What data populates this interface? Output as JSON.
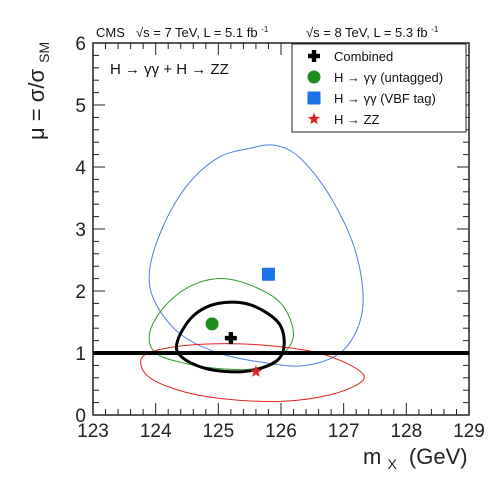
{
  "chart_data": {
    "type": "scatter",
    "header": {
      "experiment": "CMS",
      "run1_energy_prefix": "√s = 7 TeV, L = 5.1 fb",
      "run1_lumi_sup": "-1",
      "run2_energy_prefix": "√s = 8 TeV, L = 5.3 fb",
      "run2_lumi_sup": "-1"
    },
    "title": "H → γγ + H → ZZ",
    "xlabel_main": "m",
    "xlabel_sub": "X",
    "xlabel_unit": "(GeV)",
    "ylabel_main": "μ = σ/σ",
    "ylabel_sub": "SM",
    "xlim": [
      123,
      129
    ],
    "ylim": [
      0,
      6
    ],
    "xticks": [
      "123",
      "124",
      "125",
      "126",
      "127",
      "128",
      "129"
    ],
    "yticks": [
      "0",
      "1",
      "2",
      "3",
      "4",
      "5",
      "6"
    ],
    "reference_line": {
      "y": 1,
      "color": "#000000"
    },
    "series": [
      {
        "name": "Combined",
        "marker": "cross",
        "color": "#000000",
        "x": 125.2,
        "y": 1.24
      },
      {
        "name": "H → γγ (untagged)",
        "marker": "circle",
        "color": "#1e8c1e",
        "x": 124.9,
        "y": 1.47
      },
      {
        "name": "H → γγ (VBF tag)",
        "marker": "square",
        "color": "#1a73e8",
        "x": 125.8,
        "y": 2.27
      },
      {
        "name": "H → ZZ",
        "marker": "star",
        "color": "#e0221e",
        "x": 125.6,
        "y": 0.7
      }
    ],
    "contours": [
      {
        "series": "H → γγ (VBF tag)",
        "color": "#4f7fe0",
        "points": [
          [
            123.9,
            2.3
          ],
          [
            124.1,
            3.0
          ],
          [
            124.5,
            3.7
          ],
          [
            125.0,
            4.15
          ],
          [
            125.5,
            4.3
          ],
          [
            125.9,
            4.35
          ],
          [
            126.3,
            4.15
          ],
          [
            126.8,
            3.5
          ],
          [
            127.2,
            2.6
          ],
          [
            127.3,
            1.7
          ],
          [
            127.0,
            1.05
          ],
          [
            126.4,
            0.8
          ],
          [
            125.7,
            0.85
          ],
          [
            125.0,
            1.0
          ],
          [
            124.4,
            1.3
          ],
          [
            124.0,
            1.8
          ]
        ]
      },
      {
        "series": "H → γγ (untagged)",
        "color": "#2e9a2e",
        "points": [
          [
            123.9,
            1.3
          ],
          [
            124.1,
            1.7
          ],
          [
            124.5,
            2.05
          ],
          [
            125.0,
            2.2
          ],
          [
            125.5,
            2.1
          ],
          [
            126.0,
            1.8
          ],
          [
            126.2,
            1.3
          ],
          [
            126.0,
            0.95
          ],
          [
            125.6,
            0.75
          ],
          [
            125.0,
            0.75
          ],
          [
            124.4,
            0.85
          ],
          [
            124.0,
            1.0
          ]
        ]
      },
      {
        "series": "H → ZZ",
        "color": "#e0221e",
        "points": [
          [
            123.8,
            0.95
          ],
          [
            124.3,
            1.1
          ],
          [
            125.0,
            1.15
          ],
          [
            125.8,
            1.12
          ],
          [
            126.6,
            1.0
          ],
          [
            127.2,
            0.75
          ],
          [
            127.3,
            0.55
          ],
          [
            126.8,
            0.33
          ],
          [
            126.0,
            0.22
          ],
          [
            125.0,
            0.27
          ],
          [
            124.3,
            0.42
          ],
          [
            123.85,
            0.65
          ]
        ]
      },
      {
        "series": "Combined",
        "color": "#000000",
        "points": [
          [
            124.35,
            1.2
          ],
          [
            124.6,
            1.6
          ],
          [
            125.0,
            1.8
          ],
          [
            125.5,
            1.78
          ],
          [
            125.95,
            1.5
          ],
          [
            126.05,
            1.12
          ],
          [
            125.9,
            0.85
          ],
          [
            125.4,
            0.7
          ],
          [
            124.8,
            0.75
          ],
          [
            124.4,
            0.95
          ]
        ]
      }
    ],
    "legend_position": "top-right"
  }
}
